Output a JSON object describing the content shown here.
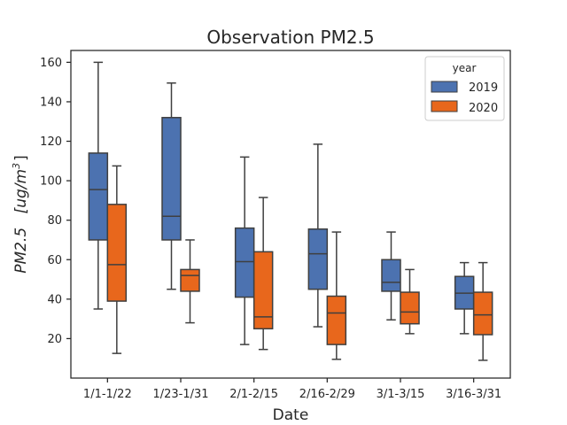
{
  "chart_data": {
    "type": "box",
    "title": "Observation PM2.5",
    "xlabel": "Date",
    "ylabel_main": "PM2.5",
    "ylabel_unit": "[ug/m",
    "ylabel_unit_exp": "3",
    "ylabel_unit_close": "]",
    "ylim": [
      0,
      166
    ],
    "yticks": [
      20,
      40,
      60,
      80,
      100,
      120,
      140,
      160
    ],
    "categories": [
      "1/1-1/22",
      "1/23-1/31",
      "2/1-2/15",
      "2/16-2/29",
      "3/1-3/15",
      "3/16-3/31"
    ],
    "legend": {
      "title": "year",
      "position": "top-right"
    },
    "series": [
      {
        "name": "2019",
        "color": "#4c72b0",
        "boxes": [
          {
            "whislo": 35,
            "q1": 70,
            "med": 95.5,
            "q3": 114,
            "whishi": 160
          },
          {
            "whislo": 45,
            "q1": 70,
            "med": 82,
            "q3": 132,
            "whishi": 149.5
          },
          {
            "whislo": 17,
            "q1": 41,
            "med": 59,
            "q3": 76,
            "whishi": 112
          },
          {
            "whislo": 26,
            "q1": 45,
            "med": 63,
            "q3": 75.5,
            "whishi": 118.5
          },
          {
            "whislo": 29.5,
            "q1": 44,
            "med": 48.5,
            "q3": 60,
            "whishi": 74
          },
          {
            "whislo": 22.5,
            "q1": 35,
            "med": 43,
            "q3": 51.5,
            "whishi": 58.5
          }
        ]
      },
      {
        "name": "2020",
        "color": "#e8671c",
        "boxes": [
          {
            "whislo": 12.5,
            "q1": 39,
            "med": 57.5,
            "q3": 88,
            "whishi": 107.5
          },
          {
            "whislo": 28,
            "q1": 44,
            "med": 52,
            "q3": 55,
            "whishi": 70
          },
          {
            "whislo": 14.5,
            "q1": 25,
            "med": 31,
            "q3": 64,
            "whishi": 91.5
          },
          {
            "whislo": 9.5,
            "q1": 17,
            "med": 33,
            "q3": 41.5,
            "whishi": 74
          },
          {
            "whislo": 22.5,
            "q1": 27.5,
            "med": 33.5,
            "q3": 43.5,
            "whishi": 55
          },
          {
            "whislo": 9,
            "q1": 22,
            "med": 32,
            "q3": 43.5,
            "whishi": 58.5
          }
        ]
      }
    ]
  }
}
